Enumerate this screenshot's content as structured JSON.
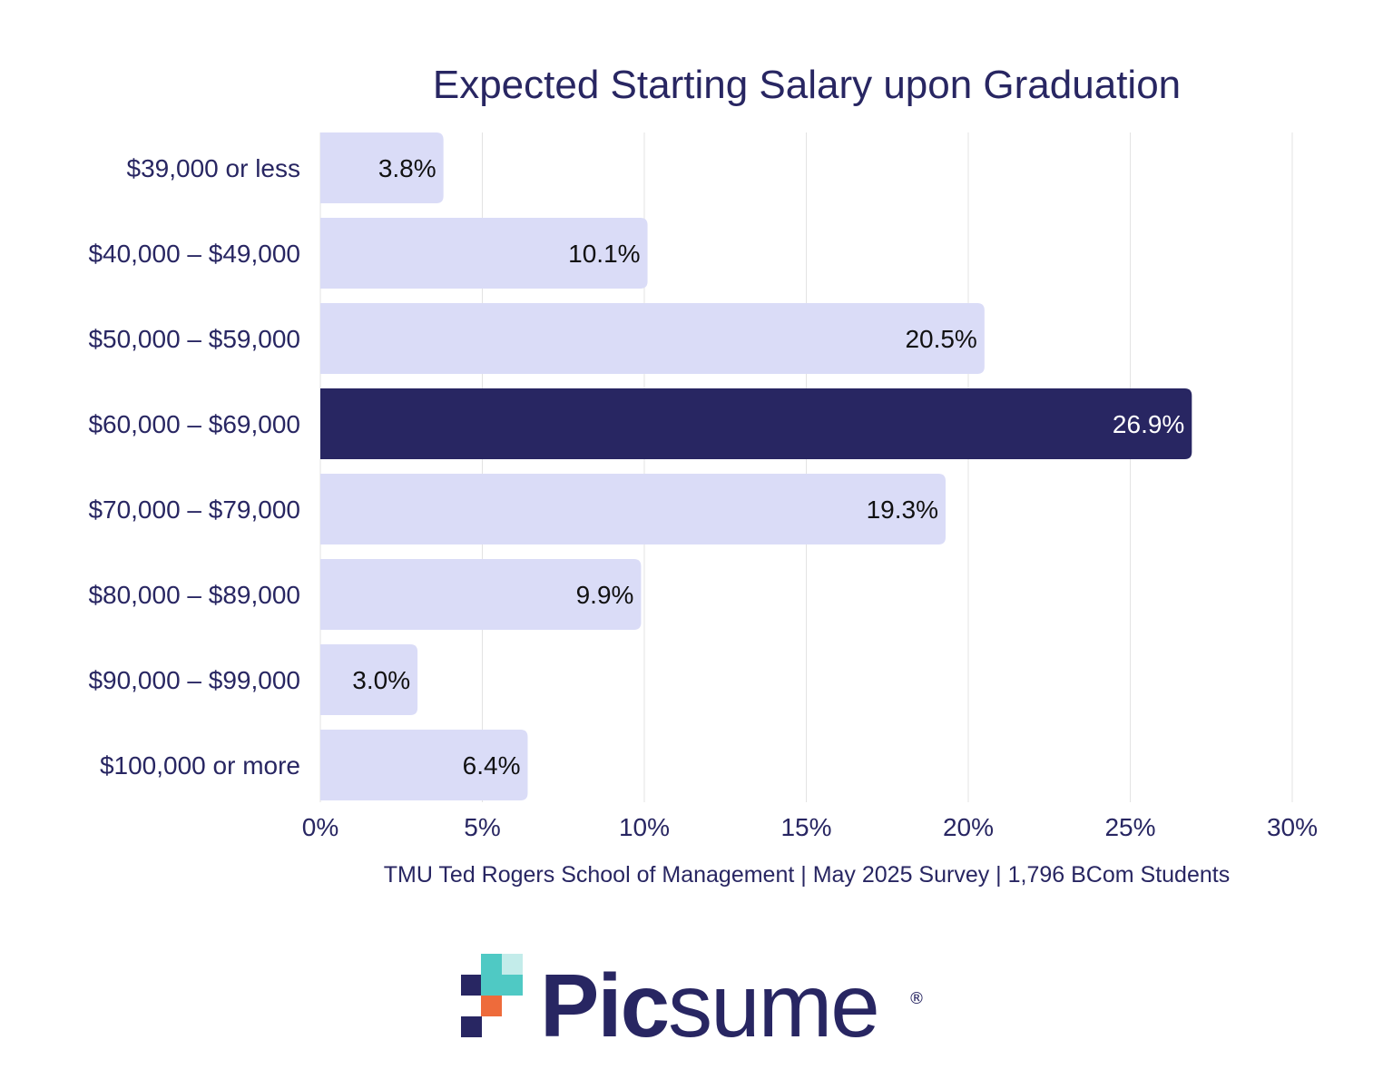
{
  "chart_data": {
    "type": "bar",
    "orientation": "horizontal",
    "title": "Expected Starting Salary upon Graduation",
    "categories": [
      "$39,000 or less",
      "$40,000 – $49,000",
      "$50,000 – $59,000",
      "$60,000 – $69,000",
      "$70,000 – $79,000",
      "$80,000 – $89,000",
      "$90,000 – $99,000",
      "$100,000 or more"
    ],
    "values": [
      3.8,
      10.1,
      20.5,
      26.9,
      19.3,
      9.9,
      3.0,
      6.4
    ],
    "value_labels": [
      "3.8%",
      "10.1%",
      "20.5%",
      "26.9%",
      "19.3%",
      "9.9%",
      "3.0%",
      "6.4%"
    ],
    "highlight_index": 3,
    "xlim": [
      0,
      30
    ],
    "x_ticks": [
      0,
      5,
      10,
      15,
      20,
      25,
      30
    ],
    "x_tick_labels": [
      "0%",
      "5%",
      "10%",
      "15%",
      "20%",
      "25%",
      "30%"
    ],
    "xlabel": "",
    "ylabel": "",
    "grid": "vertical",
    "legend": "none",
    "source": "TMU Ted Rogers School of Management | May 2025 Survey | 1,796 BCom Students",
    "colors": {
      "bar": "#dadcf7",
      "bar_highlight": "#282662",
      "text": "#282662",
      "label_dark": "#111111",
      "label_light": "#ffffff",
      "grid": "#e3e3e3"
    }
  },
  "logo": {
    "text_bold": "Pic",
    "text_regular": "sume",
    "registered": "®",
    "colors": {
      "navy": "#282662",
      "teal": "#4fc9c4",
      "teal_light": "#c3ecea",
      "orange": "#ee6b3b"
    }
  }
}
